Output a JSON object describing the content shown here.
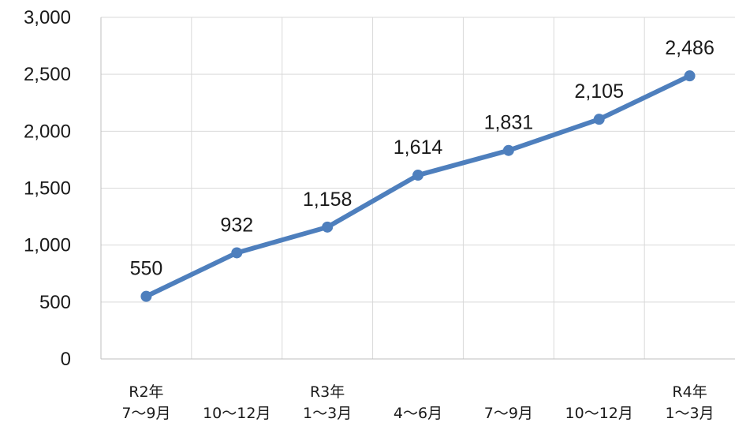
{
  "chart_data": {
    "type": "line",
    "categories": [
      [
        "R2年",
        "7～9月"
      ],
      [
        "",
        "10～12月"
      ],
      [
        "R3年",
        "1～3月"
      ],
      [
        "",
        "4～6月"
      ],
      [
        "",
        "7～9月"
      ],
      [
        "",
        "10～12月"
      ],
      [
        "R4年",
        "1～3月"
      ]
    ],
    "series": [
      {
        "values": [
          550,
          932,
          1158,
          1614,
          1831,
          2105,
          2486
        ],
        "color": "#4e7fbd"
      }
    ],
    "data_labels": [
      "550",
      "932",
      "1,158",
      "1,614",
      "1,831",
      "2,105",
      "2,486"
    ],
    "yticks": [
      0,
      500,
      1000,
      1500,
      2000,
      2500,
      3000
    ],
    "ytick_labels": [
      "0",
      "500",
      "1,000",
      "1,500",
      "2,000",
      "2,500",
      "3,000"
    ],
    "ylim": [
      0,
      3000
    ],
    "grid": true,
    "legend": false
  }
}
